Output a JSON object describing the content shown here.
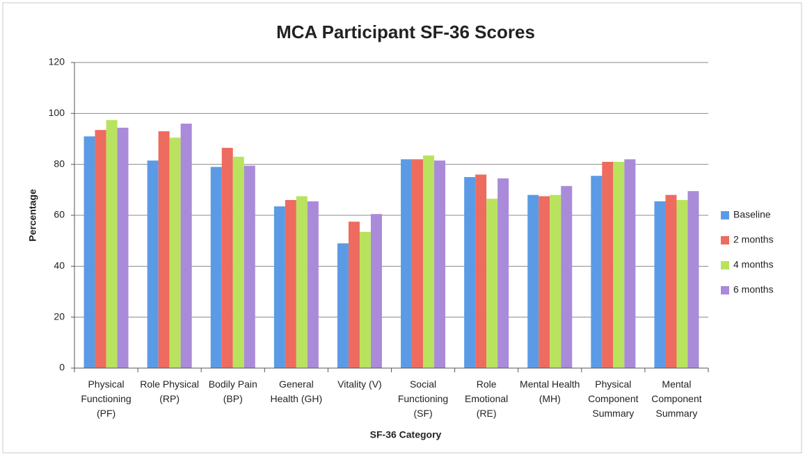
{
  "chart_data": {
    "type": "bar",
    "title": "MCA Participant SF-36 Scores",
    "x_label": "SF-36 Category",
    "y_label": "Percentage",
    "categories": [
      "Physical Functioning (PF)",
      "Role Physical (RP)",
      "Bodily Pain (BP)",
      "General Health (GH)",
      "Vitality (V)",
      "Social Functioning (SF)",
      "Role Emotional (RE)",
      "Mental Health (MH)",
      "Physical Component Summary",
      "Mental Component Summary"
    ],
    "series": [
      {
        "name": "Baseline",
        "color": "#5b9be6",
        "values": [
          91,
          81.5,
          79,
          63.5,
          49,
          82,
          75,
          68,
          75.5,
          65.5
        ]
      },
      {
        "name": "2 months",
        "color": "#ee6b5f",
        "values": [
          93.5,
          93,
          86.5,
          66,
          57.5,
          82,
          76,
          67.5,
          81,
          68
        ]
      },
      {
        "name": "4 months",
        "color": "#b9e35e",
        "values": [
          97.4,
          90.5,
          83,
          67.5,
          53.5,
          83.5,
          66.5,
          68,
          81,
          66
        ]
      },
      {
        "name": "6 months",
        "color": "#a98bd9",
        "values": [
          94.4,
          96,
          79.5,
          65.5,
          60.5,
          81.5,
          74.5,
          71.5,
          82,
          69.5
        ]
      }
    ],
    "ylim": [
      0,
      120
    ],
    "yticks": [
      0,
      20,
      40,
      60,
      80,
      100,
      120
    ],
    "grid": true,
    "legend": "right"
  }
}
